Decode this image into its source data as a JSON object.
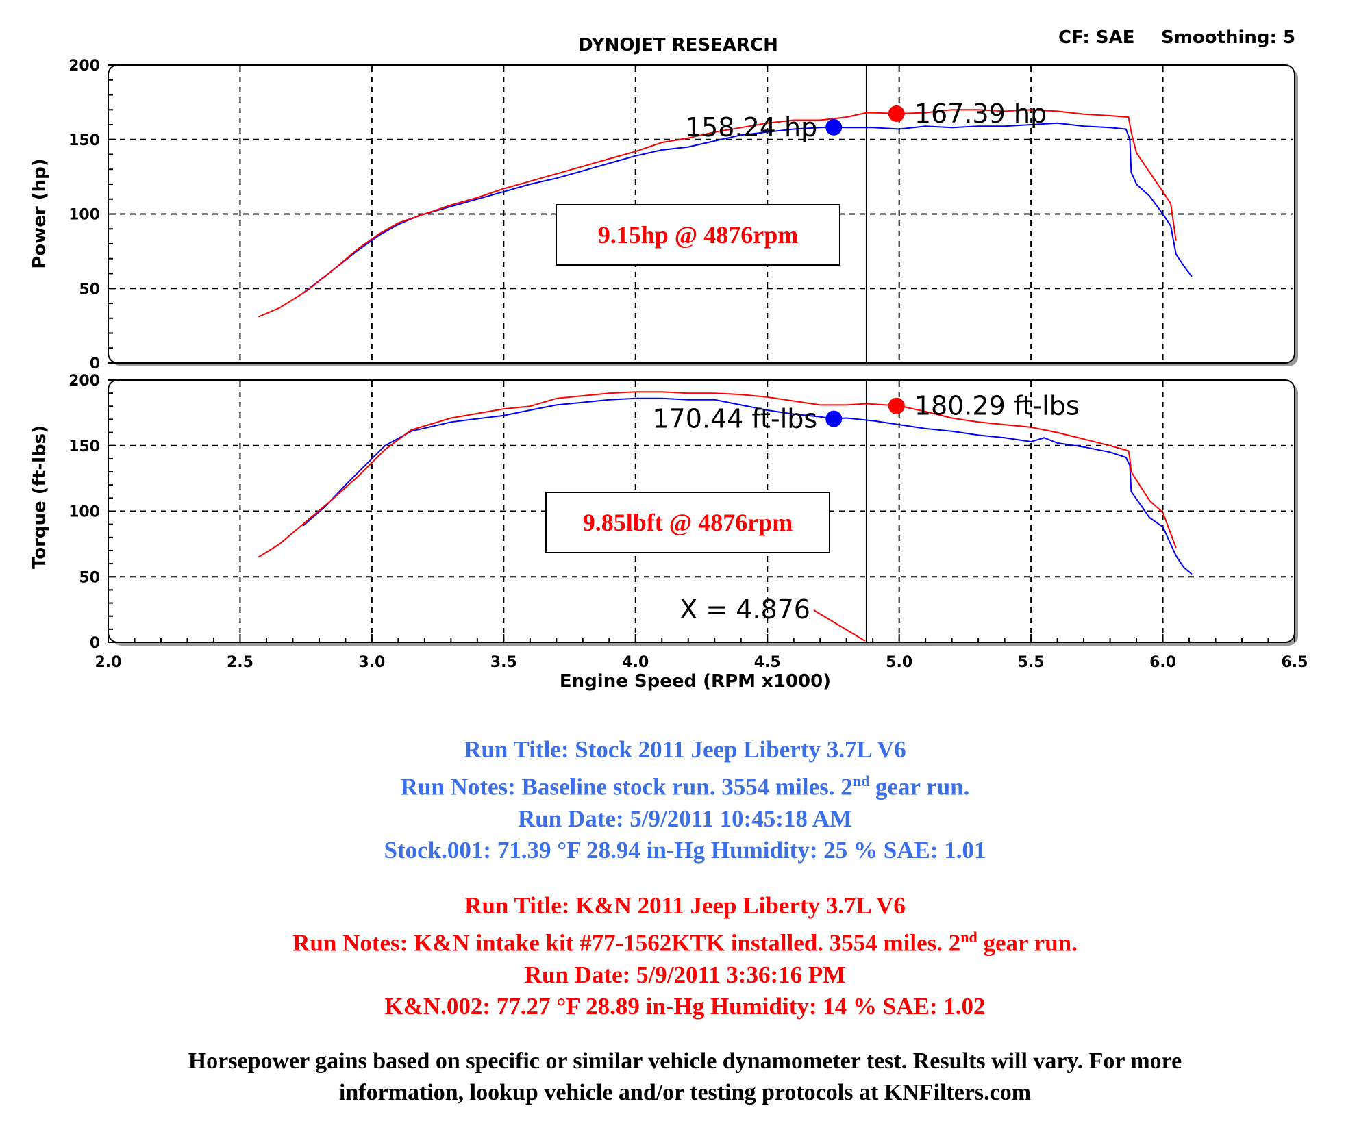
{
  "header": {
    "title": "DYNOJET RESEARCH",
    "cf_label": "CF: SAE",
    "smoothing_label": "Smoothing: 5"
  },
  "chart_data": [
    {
      "type": "line",
      "ylabel": "Power (hp)",
      "ylim": [
        0,
        200
      ],
      "yticks": [
        "0",
        "50",
        "100",
        "150",
        "200"
      ],
      "xlim": [
        2.0,
        6.5
      ],
      "grid": true,
      "series": [
        {
          "color": "#0000ff",
          "points": [
            [
              2.74,
              47
            ],
            [
              2.85,
              62
            ],
            [
              2.95,
              76
            ],
            [
              3.03,
              86
            ],
            [
              3.1,
              93
            ],
            [
              3.18,
              99
            ],
            [
              3.3,
              105
            ],
            [
              3.4,
              110
            ],
            [
              3.5,
              115
            ],
            [
              3.6,
              120
            ],
            [
              3.7,
              124
            ],
            [
              3.8,
              129
            ],
            [
              3.9,
              134
            ],
            [
              4.0,
              139
            ],
            [
              4.1,
              143
            ],
            [
              4.2,
              145
            ],
            [
              4.3,
              149
            ],
            [
              4.4,
              153
            ],
            [
              4.5,
              155
            ],
            [
              4.6,
              157
            ],
            [
              4.7,
              158
            ],
            [
              4.752,
              158.24
            ],
            [
              4.8,
              158
            ],
            [
              4.9,
              158
            ],
            [
              5.0,
              157
            ],
            [
              5.1,
              159
            ],
            [
              5.2,
              158
            ],
            [
              5.3,
              159
            ],
            [
              5.4,
              159
            ],
            [
              5.5,
              160
            ],
            [
              5.6,
              161
            ],
            [
              5.7,
              159
            ],
            [
              5.8,
              158
            ],
            [
              5.86,
              157
            ],
            [
              5.875,
              150
            ],
            [
              5.88,
              128
            ],
            [
              5.9,
              120
            ],
            [
              5.95,
              112
            ],
            [
              6.0,
              100
            ],
            [
              6.03,
              92
            ],
            [
              6.05,
              73
            ],
            [
              6.08,
              65
            ],
            [
              6.11,
              58
            ]
          ]
        },
        {
          "color": "#ff0000",
          "points": [
            [
              2.57,
              31
            ],
            [
              2.65,
              37
            ],
            [
              2.75,
              48
            ],
            [
              2.85,
              62
            ],
            [
              2.95,
              77
            ],
            [
              3.03,
              87
            ],
            [
              3.1,
              94
            ],
            [
              3.2,
              100
            ],
            [
              3.3,
              106
            ],
            [
              3.4,
              111
            ],
            [
              3.5,
              117
            ],
            [
              3.6,
              122
            ],
            [
              3.7,
              127
            ],
            [
              3.8,
              132
            ],
            [
              3.9,
              137
            ],
            [
              4.0,
              142
            ],
            [
              4.1,
              148
            ],
            [
              4.2,
              151
            ],
            [
              4.3,
              155
            ],
            [
              4.4,
              158
            ],
            [
              4.5,
              161
            ],
            [
              4.6,
              163
            ],
            [
              4.7,
              163
            ],
            [
              4.8,
              165
            ],
            [
              4.876,
              168
            ],
            [
              4.9,
              168
            ],
            [
              5.0,
              167.39
            ],
            [
              5.1,
              168
            ],
            [
              5.2,
              170
            ],
            [
              5.3,
              170
            ],
            [
              5.4,
              169
            ],
            [
              5.5,
              170
            ],
            [
              5.6,
              169
            ],
            [
              5.7,
              167
            ],
            [
              5.8,
              166
            ],
            [
              5.87,
              165
            ],
            [
              5.88,
              155
            ],
            [
              5.9,
              141
            ],
            [
              5.95,
              128
            ],
            [
              6.0,
              115
            ],
            [
              6.03,
              107
            ],
            [
              6.05,
              82
            ]
          ]
        }
      ],
      "markers": [
        {
          "x": 4.752,
          "y": 158.24,
          "label": "158.24 hp",
          "color": "#0000ff"
        },
        {
          "x": 4.99,
          "y": 167.39,
          "label": "167.39 hp",
          "color": "#ff0000"
        }
      ],
      "annotation": "9.15hp @ 4876rpm",
      "cursor_x": 4.876
    },
    {
      "type": "line",
      "ylabel": "Torque (ft-lbs)",
      "xlabel": "Engine Speed (RPM x1000)",
      "ylim": [
        0,
        200
      ],
      "yticks": [
        "0",
        "50",
        "100",
        "150",
        "200"
      ],
      "xlim": [
        2.0,
        6.5
      ],
      "xticks": [
        "2.0",
        "2.5",
        "3.0",
        "3.5",
        "4.0",
        "4.5",
        "5.0",
        "5.5",
        "6.0",
        "6.5"
      ],
      "grid": true,
      "series": [
        {
          "color": "#0000ff",
          "points": [
            [
              2.74,
              89
            ],
            [
              2.82,
              103
            ],
            [
              2.9,
              120
            ],
            [
              3.0,
              140
            ],
            [
              3.05,
              150
            ],
            [
              3.15,
              161
            ],
            [
              3.3,
              168
            ],
            [
              3.5,
              173
            ],
            [
              3.6,
              177
            ],
            [
              3.7,
              181
            ],
            [
              3.8,
              183
            ],
            [
              3.9,
              185
            ],
            [
              4.0,
              186
            ],
            [
              4.1,
              186
            ],
            [
              4.2,
              185
            ],
            [
              4.3,
              185
            ],
            [
              4.4,
              181
            ],
            [
              4.5,
              177
            ],
            [
              4.6,
              174
            ],
            [
              4.7,
              172
            ],
            [
              4.752,
              170.44
            ],
            [
              4.8,
              171
            ],
            [
              4.9,
              169
            ],
            [
              5.0,
              166
            ],
            [
              5.1,
              163
            ],
            [
              5.2,
              161
            ],
            [
              5.3,
              158
            ],
            [
              5.4,
              156
            ],
            [
              5.5,
              153
            ],
            [
              5.55,
              156
            ],
            [
              5.6,
              152
            ],
            [
              5.7,
              149
            ],
            [
              5.8,
              145
            ],
            [
              5.86,
              141
            ],
            [
              5.875,
              135
            ],
            [
              5.88,
              115
            ],
            [
              5.95,
              95
            ],
            [
              6.0,
              88
            ],
            [
              6.05,
              66
            ],
            [
              6.08,
              57
            ],
            [
              6.11,
              52
            ]
          ]
        },
        {
          "color": "#ff0000",
          "points": [
            [
              2.57,
              65
            ],
            [
              2.65,
              75
            ],
            [
              2.75,
              92
            ],
            [
              2.85,
              109
            ],
            [
              2.95,
              127
            ],
            [
              3.05,
              147
            ],
            [
              3.15,
              162
            ],
            [
              3.3,
              171
            ],
            [
              3.5,
              178
            ],
            [
              3.6,
              180
            ],
            [
              3.7,
              186
            ],
            [
              3.8,
              188
            ],
            [
              3.9,
              190
            ],
            [
              4.0,
              191
            ],
            [
              4.1,
              191
            ],
            [
              4.2,
              190
            ],
            [
              4.3,
              190
            ],
            [
              4.4,
              189
            ],
            [
              4.5,
              187
            ],
            [
              4.6,
              184
            ],
            [
              4.7,
              181
            ],
            [
              4.8,
              181
            ],
            [
              4.876,
              182
            ],
            [
              4.95,
              181
            ],
            [
              5.0,
              180.29
            ],
            [
              5.1,
              176
            ],
            [
              5.2,
              171
            ],
            [
              5.3,
              168
            ],
            [
              5.4,
              166
            ],
            [
              5.5,
              164
            ],
            [
              5.6,
              160
            ],
            [
              5.7,
              155
            ],
            [
              5.8,
              150
            ],
            [
              5.87,
              146
            ],
            [
              5.875,
              140
            ],
            [
              5.88,
              130
            ],
            [
              5.95,
              108
            ],
            [
              6.0,
              99
            ],
            [
              6.05,
              72
            ]
          ]
        }
      ],
      "markers": [
        {
          "x": 4.752,
          "y": 170.44,
          "label": "170.44 ft-lbs",
          "color": "#0000ff"
        },
        {
          "x": 4.99,
          "y": 180.29,
          "label": "180.29 ft-lbs",
          "color": "#ff0000"
        }
      ],
      "annotation": "9.85lbft @ 4876rpm",
      "cursor_x": 4.876,
      "cursor_label": "X = 4.876"
    }
  ],
  "runs": {
    "stock": {
      "color": "#3a6fe8",
      "title": "Run Title: Stock 2011 Jeep Liberty 3.7L V6",
      "notes_pre": "Run Notes: Baseline stock run. 3554 miles. 2",
      "notes_sup": "nd",
      "notes_post": " gear run.",
      "date": "Run Date: 5/9/2011 10:45:18 AM",
      "conditions": "Stock.001: 71.39 °F 28.94 in-Hg Humidity: 25 % SAE: 1.01"
    },
    "kn": {
      "color": "#ff0000",
      "title": "Run Title: K&N 2011 Jeep Liberty 3.7L V6",
      "notes_pre": "Run Notes: K&N intake kit #77-1562KTK installed. 3554 miles. 2",
      "notes_sup": "nd",
      "notes_post": " gear run.",
      "date": "Run Date: 5/9/2011 3:36:16 PM",
      "conditions": "K&N.002: 77.27 °F 28.89 in-Hg Humidity: 14 % SAE: 1.02"
    }
  },
  "disclaimer": {
    "line1": "Horsepower gains based on specific or similar vehicle dynamometer test. Results will vary. For more",
    "line2": "information, lookup vehicle and/or testing protocols at KNFilters.com"
  }
}
